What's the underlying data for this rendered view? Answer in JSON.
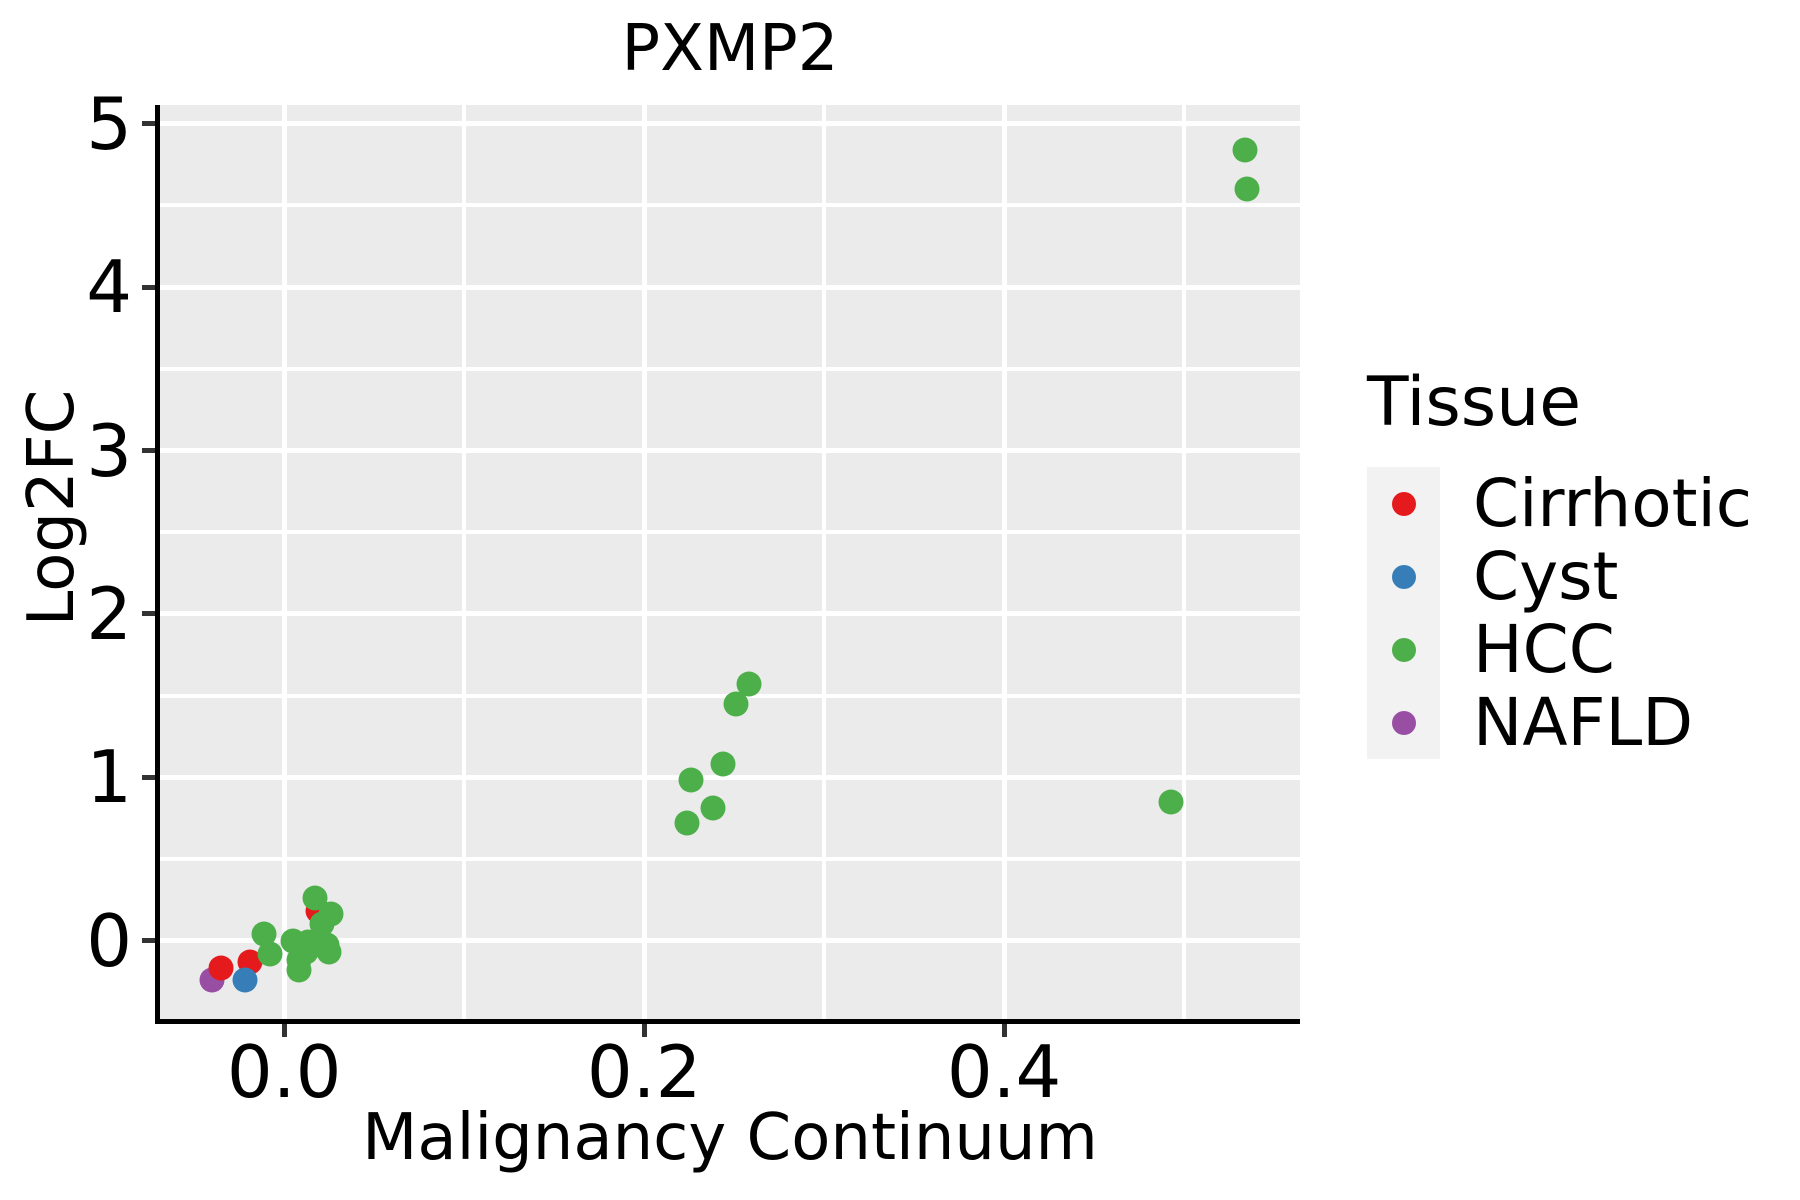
{
  "chart_data": {
    "type": "scatter",
    "title": "PXMP2",
    "xlabel": "Malignancy Continuum",
    "ylabel": "Log2FC",
    "xlim": [
      -0.069,
      0.5644
    ],
    "ylim": [
      -0.48,
      5.115
    ],
    "grid": true,
    "panel_background": "#EBEBEB",
    "gridline_color": "#FFFFFF",
    "x_ticks": [
      {
        "value": 0.0,
        "label": "0.0"
      },
      {
        "value": 0.2,
        "label": "0.2"
      },
      {
        "value": 0.4,
        "label": "0.4"
      }
    ],
    "y_ticks": [
      {
        "value": 0,
        "label": "0"
      },
      {
        "value": 1,
        "label": "1"
      },
      {
        "value": 2,
        "label": "2"
      },
      {
        "value": 3,
        "label": "3"
      },
      {
        "value": 4,
        "label": "4"
      },
      {
        "value": 5,
        "label": "5"
      }
    ],
    "x_minor_gridlines": [
      0.1,
      0.3,
      0.5
    ],
    "y_minor_gridlines": [
      0.5,
      1.5,
      2.5,
      3.5,
      4.5
    ],
    "draw_order": [
      "NAFLD",
      "Cirrhotic",
      "Cyst",
      "HCC"
    ],
    "series": [
      {
        "name": "Cirrhotic",
        "color": "#E41A1C",
        "points": [
          [
            -0.035,
            -0.17
          ],
          [
            -0.019,
            -0.13
          ],
          [
            0.019,
            0.18
          ]
        ]
      },
      {
        "name": "Cyst",
        "color": "#377EB8",
        "points": [
          [
            -0.022,
            -0.24
          ]
        ]
      },
      {
        "name": "HCC",
        "color": "#4DAF4A",
        "points": [
          [
            -0.011,
            0.04
          ],
          [
            -0.008,
            -0.08
          ],
          [
            0.005,
            0.0
          ],
          [
            0.008,
            -0.12
          ],
          [
            0.008,
            -0.18
          ],
          [
            0.013,
            -0.01
          ],
          [
            0.012,
            -0.07
          ],
          [
            0.024,
            -0.03
          ],
          [
            0.025,
            -0.07
          ],
          [
            0.017,
            0.26
          ],
          [
            0.026,
            0.16
          ],
          [
            0.021,
            0.1
          ],
          [
            0.224,
            0.72
          ],
          [
            0.226,
            0.98
          ],
          [
            0.238,
            0.81
          ],
          [
            0.244,
            1.08
          ],
          [
            0.251,
            1.45
          ],
          [
            0.258,
            1.57
          ],
          [
            0.493,
            0.85
          ],
          [
            0.534,
            4.84
          ],
          [
            0.535,
            4.6
          ]
        ]
      },
      {
        "name": "NAFLD",
        "color": "#984EA3",
        "points": [
          [
            -0.04,
            -0.24
          ]
        ]
      }
    ]
  },
  "legend": {
    "title": "Tissue",
    "position": "right",
    "key_background": "#F2F2F2",
    "items": [
      {
        "label": "Cirrhotic",
        "color": "#E41A1C"
      },
      {
        "label": "Cyst",
        "color": "#377EB8"
      },
      {
        "label": "HCC",
        "color": "#4DAF4A"
      },
      {
        "label": "NAFLD",
        "color": "#984EA3"
      }
    ]
  }
}
